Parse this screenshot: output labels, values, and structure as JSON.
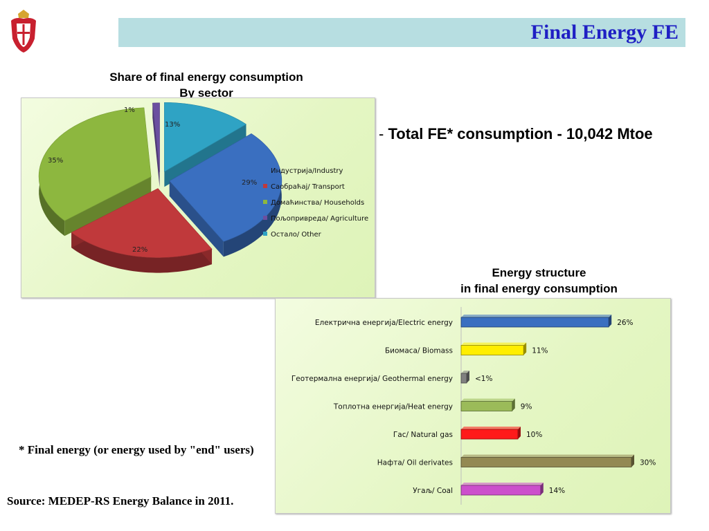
{
  "header": {
    "title": "Final Energy FE"
  },
  "summary": {
    "dash": "-",
    "total_label": "Total FE* consumption - 10,042 Mtoe"
  },
  "footnote": {
    "star": "* F",
    "rest": "inal energy (or energy used by \"end\" users)"
  },
  "source": "Source: MEDEP-RS Energy Balance in 2011.",
  "chart_data": [
    {
      "type": "pie",
      "title": "Share of final energy consumption",
      "subtitle": "By sector",
      "legend_position": "right",
      "slices": [
        {
          "name": "Индустрија/Industry",
          "value": 29,
          "label": "29%",
          "color": "#3a6fc0"
        },
        {
          "name": "Саобраћај/ Transport",
          "value": 22,
          "label": "22%",
          "color": "#c0393b"
        },
        {
          "name": "Домаћинства/ Households",
          "value": 35,
          "label": "35%",
          "color": "#8db73f"
        },
        {
          "name": "Пољопривреда/ Agriculture",
          "value": 1,
          "label": "1%",
          "color": "#6b4fa0"
        },
        {
          "name": "Остало/ Other",
          "value": 13,
          "label": "13%",
          "color": "#2fa3c4"
        }
      ]
    },
    {
      "type": "bar",
      "orientation": "horizontal",
      "title": "Energy structure",
      "subtitle": "in final energy consumption",
      "categories": [
        "Електрична енергија/Electric energy",
        "Биомаса/ Biomass",
        "Геотермална енергија/ Geothermal energy",
        "Топлотна енергија/Heat energy",
        "Гас/ Natural gas",
        "Нафта/ Oil derivates",
        "Угаљ/ Coal"
      ],
      "values": [
        26,
        11,
        0.5,
        9,
        10,
        30,
        14
      ],
      "labels": [
        "26%",
        "11%",
        "<1%",
        "9%",
        "10%",
        "30%",
        "14%"
      ],
      "colors": [
        "#3a6fc0",
        "#ffee00",
        "#808080",
        "#9bbb59",
        "#ff1a1a",
        "#938953",
        "#cc4fcc"
      ],
      "xlim": [
        0,
        30
      ]
    }
  ]
}
